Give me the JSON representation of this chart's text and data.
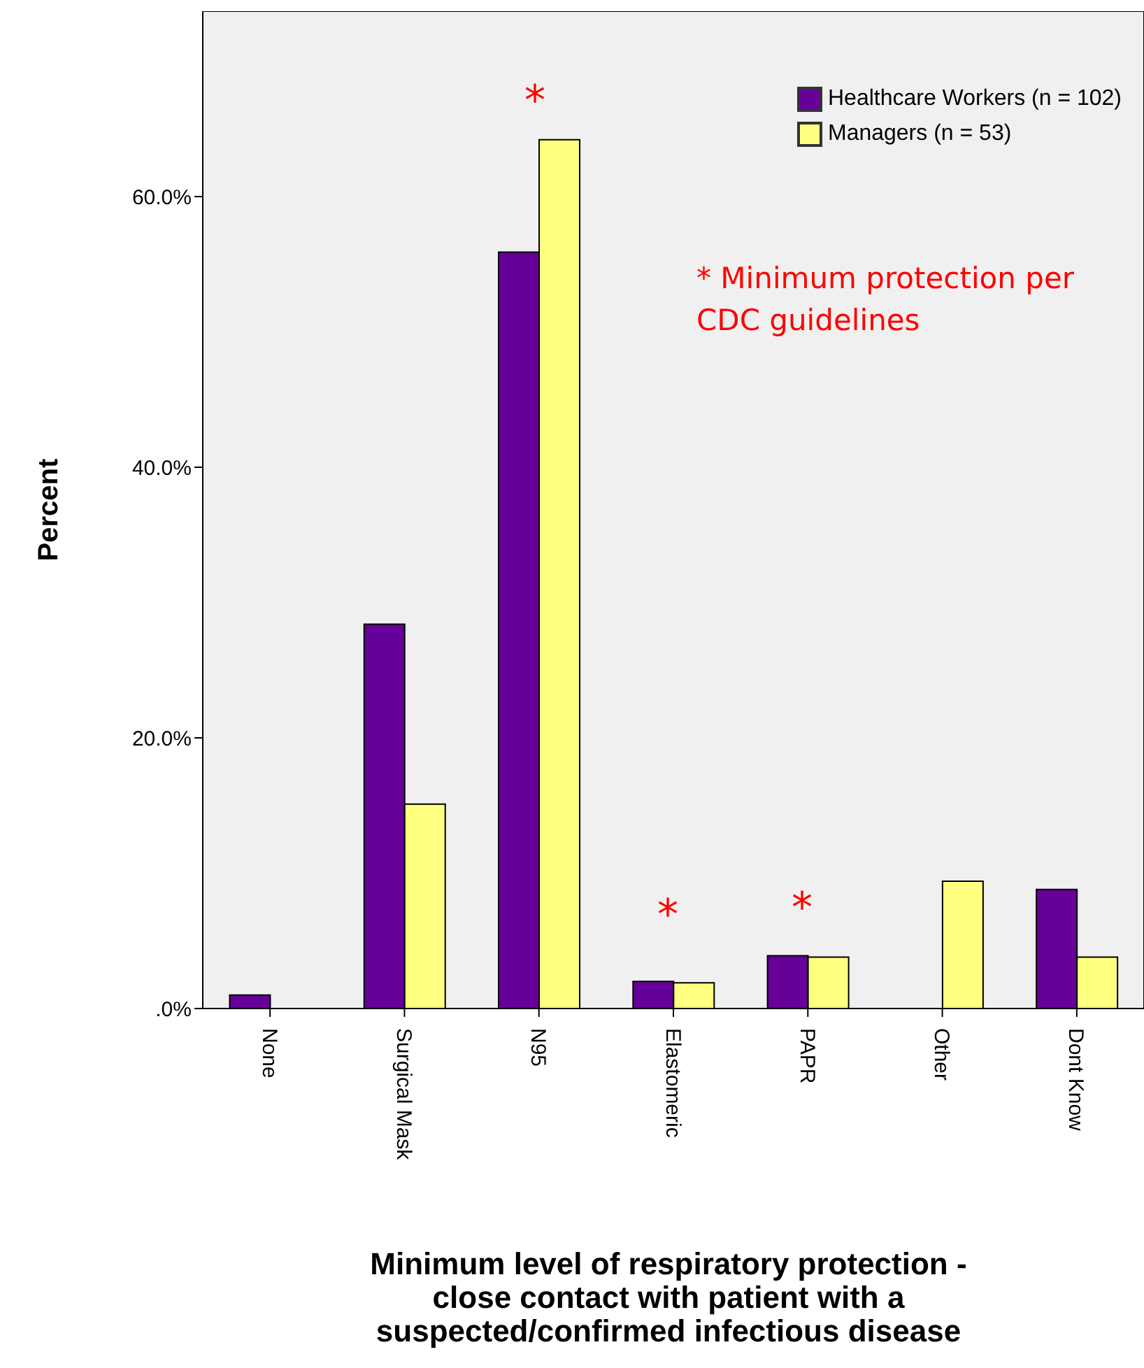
{
  "chart_data": {
    "type": "bar",
    "xlabel": "Minimum level of respiratory protection -\nclose contact with patient with a\nsuspected/confirmed infectious disease",
    "ylabel": "Percent",
    "categories": [
      "None",
      "Surgical Mask",
      "N95",
      "Elastomeric",
      "PAPR",
      "Other",
      "Dont Know"
    ],
    "series": [
      {
        "name": "Healthcare Workers (n = 102)",
        "color": "#660099",
        "values": [
          1.0,
          28.4,
          55.9,
          2.0,
          3.9,
          0,
          8.8
        ]
      },
      {
        "name": "Managers (n = 53)",
        "color": "#ffff80",
        "values": [
          0,
          15.1,
          64.2,
          1.9,
          3.8,
          9.4,
          3.8
        ]
      }
    ],
    "ylim": [
      0,
      73.7
    ],
    "yticks": [
      {
        "value": 0,
        "label": ".0%"
      },
      {
        "value": 20,
        "label": "20.0%"
      },
      {
        "value": 40,
        "label": "40.0%"
      },
      {
        "value": 60,
        "label": "60.0%"
      }
    ],
    "legend": "top right",
    "annotations": [
      "*",
      "*",
      "*",
      "* Minimum protection per\nCDC guidelines"
    ]
  }
}
